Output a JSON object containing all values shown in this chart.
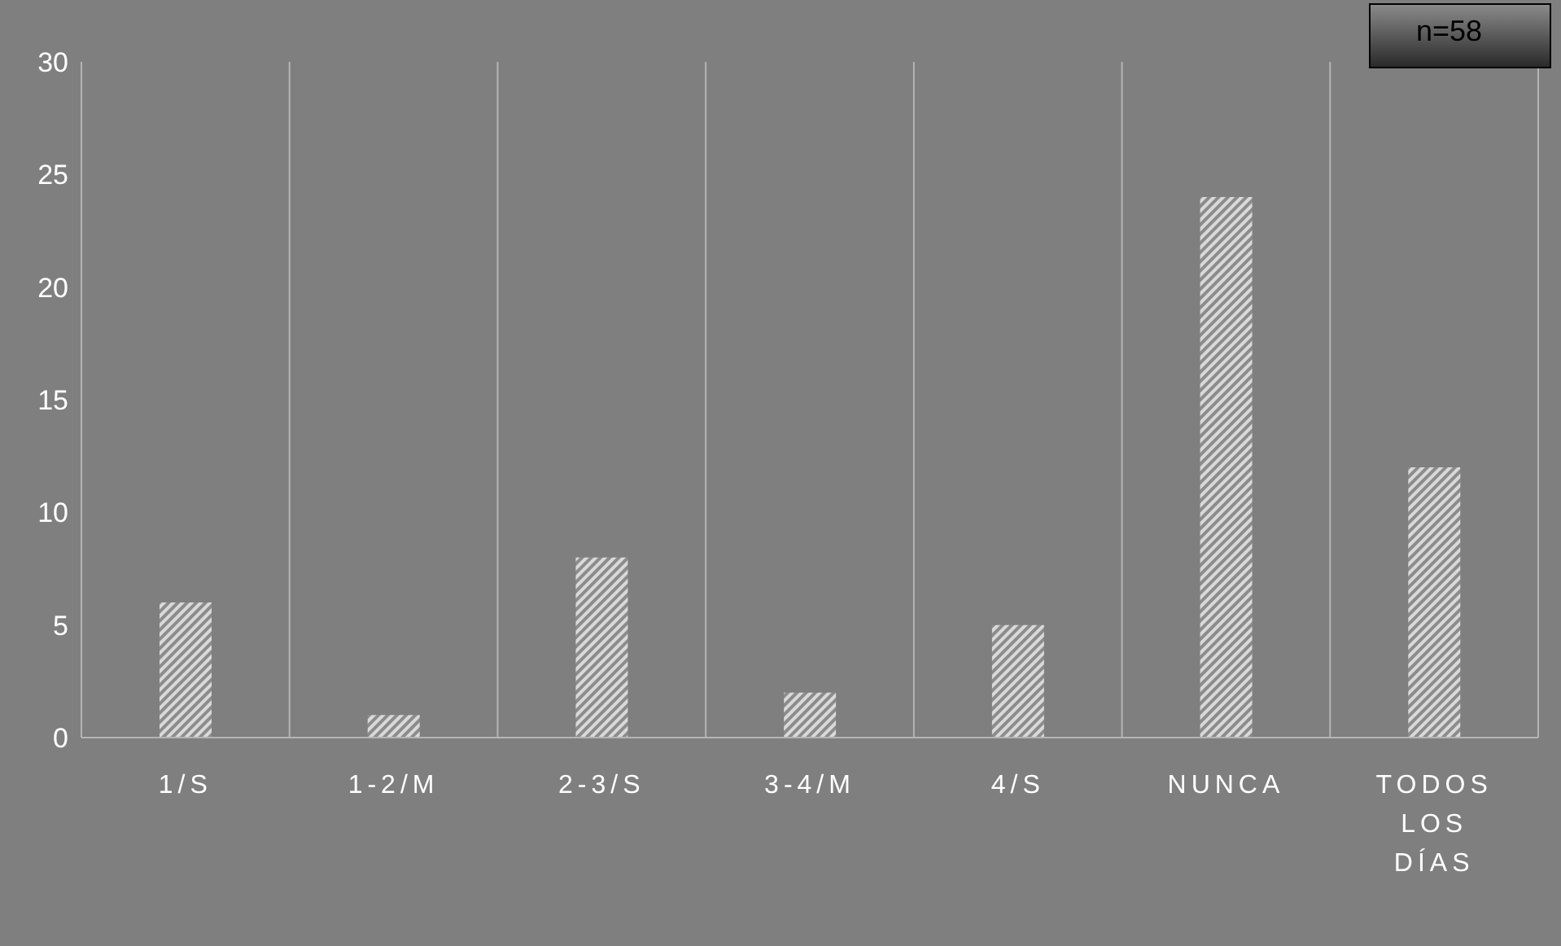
{
  "chart_data": {
    "type": "bar",
    "categories": [
      "1/S",
      "1-2/M",
      "2-3/S",
      "3-4/M",
      "4/S",
      "NUNCA",
      "TODOS LOS DÍAS"
    ],
    "values": [
      6,
      1,
      8,
      2,
      5,
      24,
      12
    ],
    "color": "#d9d9d9",
    "ylim": [
      0,
      30
    ],
    "yticks": [
      0,
      5,
      10,
      15,
      20,
      25,
      30
    ],
    "grid": "x",
    "annotations": [
      "n=58"
    ]
  }
}
